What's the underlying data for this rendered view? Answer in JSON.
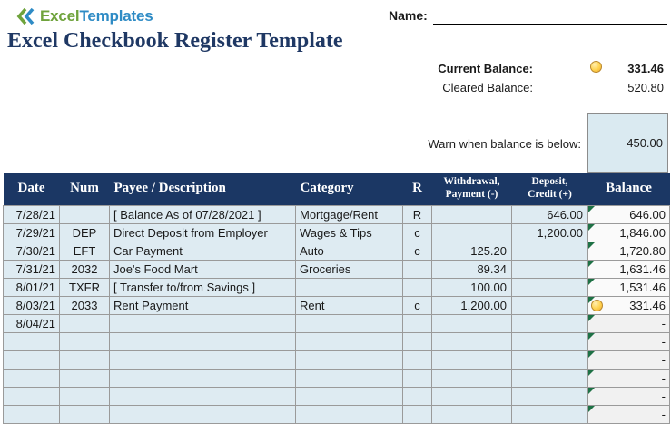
{
  "logo": {
    "brand_excel": "Excel",
    "brand_templates": "Templates"
  },
  "name_field": {
    "label": "Name:"
  },
  "title": "Excel Checkbook Register Template",
  "balances": {
    "current_label": "Current Balance:",
    "current_value": "331.46",
    "cleared_label": "Cleared Balance:",
    "cleared_value": "520.80"
  },
  "warn": {
    "label": "Warn when balance is below:",
    "value": "450.00"
  },
  "colors": {
    "header_navy": "#1b3764",
    "title_navy": "#1f3864",
    "row_light_blue": "#deebf2",
    "warn_box_blue": "#daeaf1",
    "balance_cell_bg": "#fafafa",
    "grid_border": "#9a9a9a",
    "formula_marker_green": "#1e7145",
    "status_gold": "#ffd24d",
    "logo_green": "#6fa33c",
    "logo_blue": "#2e8bc5"
  },
  "table": {
    "headers": [
      {
        "line1": "Date"
      },
      {
        "line1": "Num"
      },
      {
        "line1": "Payee / Description"
      },
      {
        "line1": "Category"
      },
      {
        "line1": "R"
      },
      {
        "line1": "Withdrawal,",
        "line2": "Payment (-)"
      },
      {
        "line1": "Deposit,",
        "line2": "Credit (+)"
      },
      {
        "line1": "Balance"
      }
    ],
    "rows": [
      {
        "date": "7/28/21",
        "num": "",
        "payee": "[ Balance As of 07/28/2021 ]",
        "category": "Mortgage/Rent",
        "r": "R",
        "withdrawal": "",
        "deposit": "646.00",
        "balance": "646.00",
        "balance_icon": false
      },
      {
        "date": "7/29/21",
        "num": "DEP",
        "payee": "Direct Deposit from Employer",
        "category": "Wages & Tips",
        "r": "c",
        "withdrawal": "",
        "deposit": "1,200.00",
        "balance": "1,846.00",
        "balance_icon": false
      },
      {
        "date": "7/30/21",
        "num": "EFT",
        "payee": "Car Payment",
        "category": "Auto",
        "r": "c",
        "withdrawal": "125.20",
        "deposit": "",
        "balance": "1,720.80",
        "balance_icon": false
      },
      {
        "date": "7/31/21",
        "num": "2032",
        "payee": "Joe's Food Mart",
        "category": "Groceries",
        "r": "",
        "withdrawal": "89.34",
        "deposit": "",
        "balance": "1,631.46",
        "balance_icon": false
      },
      {
        "date": "8/01/21",
        "num": "TXFR",
        "payee": "[ Transfer to/from Savings ]",
        "category": "",
        "r": "",
        "withdrawal": "100.00",
        "deposit": "",
        "balance": "1,531.46",
        "balance_icon": false
      },
      {
        "date": "8/03/21",
        "num": "2033",
        "payee": "Rent Payment",
        "category": "Rent",
        "r": "c",
        "withdrawal": "1,200.00",
        "deposit": "",
        "balance": "331.46",
        "balance_icon": true
      },
      {
        "date": "8/04/21",
        "num": "",
        "payee": "",
        "category": "",
        "r": "",
        "withdrawal": "",
        "deposit": "",
        "balance": "-",
        "balance_icon": false
      },
      {
        "date": "",
        "num": "",
        "payee": "",
        "category": "",
        "r": "",
        "withdrawal": "",
        "deposit": "",
        "balance": "-",
        "balance_icon": false
      },
      {
        "date": "",
        "num": "",
        "payee": "",
        "category": "",
        "r": "",
        "withdrawal": "",
        "deposit": "",
        "balance": "-",
        "balance_icon": false
      },
      {
        "date": "",
        "num": "",
        "payee": "",
        "category": "",
        "r": "",
        "withdrawal": "",
        "deposit": "",
        "balance": "-",
        "balance_icon": false
      },
      {
        "date": "",
        "num": "",
        "payee": "",
        "category": "",
        "r": "",
        "withdrawal": "",
        "deposit": "",
        "balance": "-",
        "balance_icon": false
      },
      {
        "date": "",
        "num": "",
        "payee": "",
        "category": "",
        "r": "",
        "withdrawal": "",
        "deposit": "",
        "balance": "-",
        "balance_icon": false
      }
    ]
  }
}
